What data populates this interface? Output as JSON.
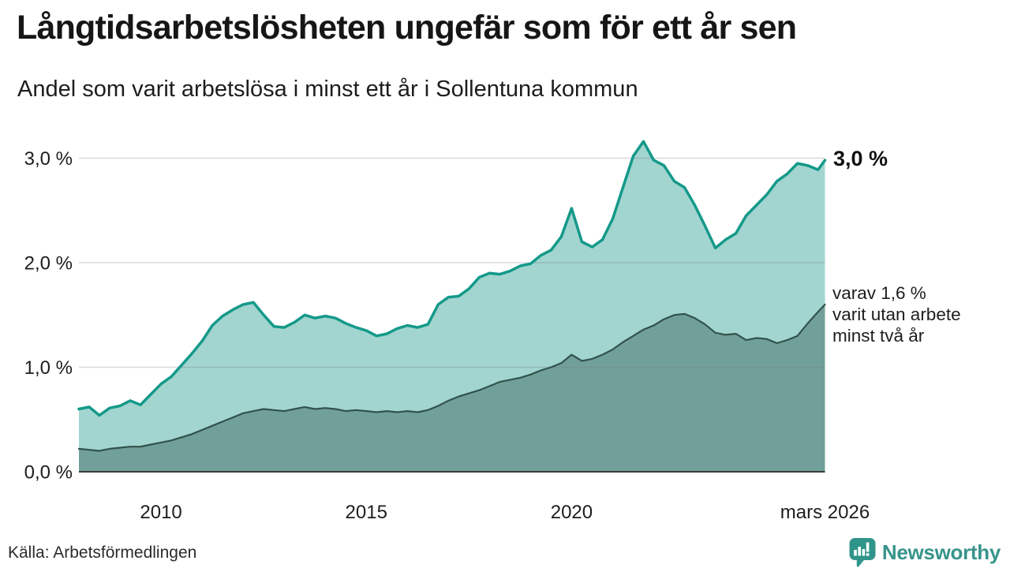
{
  "header": {
    "title": "Långtidsarbetslösheten ungefär som för ett år sen",
    "subtitle": "Andel som varit arbetslösa i minst ett år i Sollentuna kommun"
  },
  "chart_data": {
    "type": "area",
    "title": "Långtidsarbetslösheten ungefär som för ett år sen",
    "subtitle": "Andel som varit arbetslösa i minst ett år i Sollentuna kommun",
    "unit": "%",
    "grid": "horizontal",
    "xlim": [
      2008.0,
      2026.17
    ],
    "ylim": [
      0,
      3.2
    ],
    "x": [
      2008.0,
      2008.25,
      2008.5,
      2008.75,
      2009.0,
      2009.25,
      2009.5,
      2009.75,
      2010.0,
      2010.25,
      2010.5,
      2010.75,
      2011.0,
      2011.25,
      2011.5,
      2011.75,
      2012.0,
      2012.25,
      2012.5,
      2012.75,
      2013.0,
      2013.25,
      2013.5,
      2013.75,
      2014.0,
      2014.25,
      2014.5,
      2014.75,
      2015.0,
      2015.25,
      2015.5,
      2015.75,
      2016.0,
      2016.25,
      2016.5,
      2016.75,
      2017.0,
      2017.25,
      2017.5,
      2017.75,
      2018.0,
      2018.25,
      2018.5,
      2018.75,
      2019.0,
      2019.25,
      2019.5,
      2019.75,
      2020.0,
      2020.25,
      2020.5,
      2020.75,
      2021.0,
      2021.25,
      2021.5,
      2021.75,
      2022.0,
      2022.25,
      2022.5,
      2022.75,
      2023.0,
      2023.25,
      2023.5,
      2023.75,
      2024.0,
      2024.25,
      2024.5,
      2024.75,
      2025.0,
      2025.25,
      2025.5,
      2025.75,
      2026.0,
      2026.17
    ],
    "series": [
      {
        "name": "Arbetslösa minst ett år",
        "line_color": "#14998a",
        "fill_color": "#a2d5cf",
        "line_width": 3.5,
        "values": [
          0.6,
          0.62,
          0.54,
          0.61,
          0.63,
          0.68,
          0.64,
          0.74,
          0.84,
          0.91,
          1.02,
          1.13,
          1.25,
          1.4,
          1.49,
          1.55,
          1.6,
          1.62,
          1.5,
          1.39,
          1.38,
          1.43,
          1.5,
          1.47,
          1.49,
          1.47,
          1.42,
          1.38,
          1.35,
          1.3,
          1.32,
          1.37,
          1.4,
          1.38,
          1.41,
          1.6,
          1.67,
          1.68,
          1.75,
          1.86,
          1.9,
          1.89,
          1.92,
          1.97,
          1.99,
          2.07,
          2.12,
          2.25,
          2.52,
          2.2,
          2.15,
          2.22,
          2.42,
          2.72,
          3.02,
          3.16,
          2.98,
          2.93,
          2.78,
          2.72,
          2.55,
          2.35,
          2.14,
          2.22,
          2.28,
          2.45,
          2.55,
          2.65,
          2.78,
          2.85,
          2.95,
          2.93,
          2.89,
          2.98
        ]
      },
      {
        "name": "Varav utan arbete minst två år",
        "line_color": "#32524d",
        "fill_color": "#71a09a",
        "line_width": 2.2,
        "values": [
          0.22,
          0.21,
          0.2,
          0.22,
          0.23,
          0.24,
          0.24,
          0.26,
          0.28,
          0.3,
          0.33,
          0.36,
          0.4,
          0.44,
          0.48,
          0.52,
          0.56,
          0.58,
          0.6,
          0.59,
          0.58,
          0.6,
          0.62,
          0.6,
          0.61,
          0.6,
          0.58,
          0.59,
          0.58,
          0.57,
          0.58,
          0.57,
          0.58,
          0.57,
          0.59,
          0.63,
          0.68,
          0.72,
          0.75,
          0.78,
          0.82,
          0.86,
          0.88,
          0.9,
          0.93,
          0.97,
          1.0,
          1.04,
          1.12,
          1.06,
          1.08,
          1.12,
          1.17,
          1.24,
          1.3,
          1.36,
          1.4,
          1.46,
          1.5,
          1.51,
          1.47,
          1.41,
          1.33,
          1.31,
          1.32,
          1.26,
          1.28,
          1.27,
          1.23,
          1.26,
          1.3,
          1.42,
          1.53,
          1.6
        ]
      }
    ],
    "yticks": [
      {
        "value": 0.0,
        "label": "0,0 %"
      },
      {
        "value": 1.0,
        "label": "1,0 %"
      },
      {
        "value": 2.0,
        "label": "2,0 %"
      },
      {
        "value": 3.0,
        "label": "3,0 %"
      }
    ],
    "xticks": [
      {
        "value": 2010,
        "label": "2010"
      },
      {
        "value": 2015,
        "label": "2015"
      },
      {
        "value": 2020,
        "label": "2020"
      },
      {
        "value": 2026.17,
        "label": "mars 2026"
      }
    ]
  },
  "annotations": {
    "end_total": "3,0 %",
    "end_two_year_lines": [
      "varav 1,6 %",
      "varit utan arbete",
      "minst två år"
    ]
  },
  "footer": {
    "source": "Källa: Arbetsförmedlingen",
    "brand": "Newsworthy"
  },
  "colors": {
    "accent_teal": "#14998a",
    "fill_light": "#a2d5cf",
    "fill_dark": "#71a09a",
    "line_dark": "#32524d",
    "brand_teal": "#37948b",
    "text": "#1d1d1d",
    "grid": "#dedee2"
  }
}
